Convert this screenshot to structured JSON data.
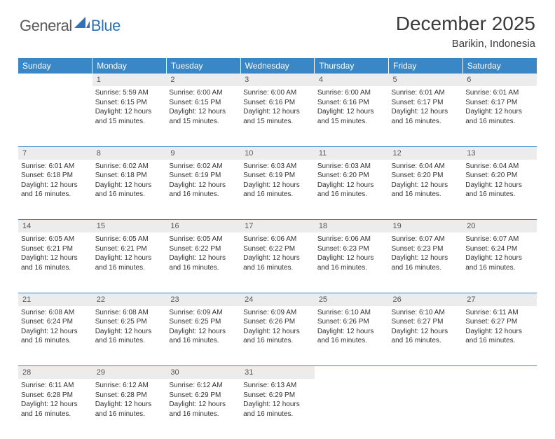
{
  "brand": {
    "general": "General",
    "blue": "Blue"
  },
  "title": "December 2025",
  "location": "Barikin, Indonesia",
  "colors": {
    "header_bg": "#3a87c7",
    "header_fg": "#ffffff",
    "daynum_bg": "#ececec",
    "border": "#3a87c7",
    "text": "#333333",
    "logo_gray": "#5a5a5a",
    "logo_blue": "#2f72b8"
  },
  "day_headers": [
    "Sunday",
    "Monday",
    "Tuesday",
    "Wednesday",
    "Thursday",
    "Friday",
    "Saturday"
  ],
  "weeks": [
    [
      {
        "n": "",
        "sr": "",
        "ss": "",
        "dl": ""
      },
      {
        "n": "1",
        "sr": "5:59 AM",
        "ss": "6:15 PM",
        "dl": "12 hours and 15 minutes."
      },
      {
        "n": "2",
        "sr": "6:00 AM",
        "ss": "6:15 PM",
        "dl": "12 hours and 15 minutes."
      },
      {
        "n": "3",
        "sr": "6:00 AM",
        "ss": "6:16 PM",
        "dl": "12 hours and 15 minutes."
      },
      {
        "n": "4",
        "sr": "6:00 AM",
        "ss": "6:16 PM",
        "dl": "12 hours and 15 minutes."
      },
      {
        "n": "5",
        "sr": "6:01 AM",
        "ss": "6:17 PM",
        "dl": "12 hours and 16 minutes."
      },
      {
        "n": "6",
        "sr": "6:01 AM",
        "ss": "6:17 PM",
        "dl": "12 hours and 16 minutes."
      }
    ],
    [
      {
        "n": "7",
        "sr": "6:01 AM",
        "ss": "6:18 PM",
        "dl": "12 hours and 16 minutes."
      },
      {
        "n": "8",
        "sr": "6:02 AM",
        "ss": "6:18 PM",
        "dl": "12 hours and 16 minutes."
      },
      {
        "n": "9",
        "sr": "6:02 AM",
        "ss": "6:19 PM",
        "dl": "12 hours and 16 minutes."
      },
      {
        "n": "10",
        "sr": "6:03 AM",
        "ss": "6:19 PM",
        "dl": "12 hours and 16 minutes."
      },
      {
        "n": "11",
        "sr": "6:03 AM",
        "ss": "6:20 PM",
        "dl": "12 hours and 16 minutes."
      },
      {
        "n": "12",
        "sr": "6:04 AM",
        "ss": "6:20 PM",
        "dl": "12 hours and 16 minutes."
      },
      {
        "n": "13",
        "sr": "6:04 AM",
        "ss": "6:20 PM",
        "dl": "12 hours and 16 minutes."
      }
    ],
    [
      {
        "n": "14",
        "sr": "6:05 AM",
        "ss": "6:21 PM",
        "dl": "12 hours and 16 minutes."
      },
      {
        "n": "15",
        "sr": "6:05 AM",
        "ss": "6:21 PM",
        "dl": "12 hours and 16 minutes."
      },
      {
        "n": "16",
        "sr": "6:05 AM",
        "ss": "6:22 PM",
        "dl": "12 hours and 16 minutes."
      },
      {
        "n": "17",
        "sr": "6:06 AM",
        "ss": "6:22 PM",
        "dl": "12 hours and 16 minutes."
      },
      {
        "n": "18",
        "sr": "6:06 AM",
        "ss": "6:23 PM",
        "dl": "12 hours and 16 minutes."
      },
      {
        "n": "19",
        "sr": "6:07 AM",
        "ss": "6:23 PM",
        "dl": "12 hours and 16 minutes."
      },
      {
        "n": "20",
        "sr": "6:07 AM",
        "ss": "6:24 PM",
        "dl": "12 hours and 16 minutes."
      }
    ],
    [
      {
        "n": "21",
        "sr": "6:08 AM",
        "ss": "6:24 PM",
        "dl": "12 hours and 16 minutes."
      },
      {
        "n": "22",
        "sr": "6:08 AM",
        "ss": "6:25 PM",
        "dl": "12 hours and 16 minutes."
      },
      {
        "n": "23",
        "sr": "6:09 AM",
        "ss": "6:25 PM",
        "dl": "12 hours and 16 minutes."
      },
      {
        "n": "24",
        "sr": "6:09 AM",
        "ss": "6:26 PM",
        "dl": "12 hours and 16 minutes."
      },
      {
        "n": "25",
        "sr": "6:10 AM",
        "ss": "6:26 PM",
        "dl": "12 hours and 16 minutes."
      },
      {
        "n": "26",
        "sr": "6:10 AM",
        "ss": "6:27 PM",
        "dl": "12 hours and 16 minutes."
      },
      {
        "n": "27",
        "sr": "6:11 AM",
        "ss": "6:27 PM",
        "dl": "12 hours and 16 minutes."
      }
    ],
    [
      {
        "n": "28",
        "sr": "6:11 AM",
        "ss": "6:28 PM",
        "dl": "12 hours and 16 minutes."
      },
      {
        "n": "29",
        "sr": "6:12 AM",
        "ss": "6:28 PM",
        "dl": "12 hours and 16 minutes."
      },
      {
        "n": "30",
        "sr": "6:12 AM",
        "ss": "6:29 PM",
        "dl": "12 hours and 16 minutes."
      },
      {
        "n": "31",
        "sr": "6:13 AM",
        "ss": "6:29 PM",
        "dl": "12 hours and 16 minutes."
      },
      {
        "n": "",
        "sr": "",
        "ss": "",
        "dl": ""
      },
      {
        "n": "",
        "sr": "",
        "ss": "",
        "dl": ""
      },
      {
        "n": "",
        "sr": "",
        "ss": "",
        "dl": ""
      }
    ]
  ],
  "labels": {
    "sunrise": "Sunrise:",
    "sunset": "Sunset:",
    "daylight": "Daylight:"
  }
}
